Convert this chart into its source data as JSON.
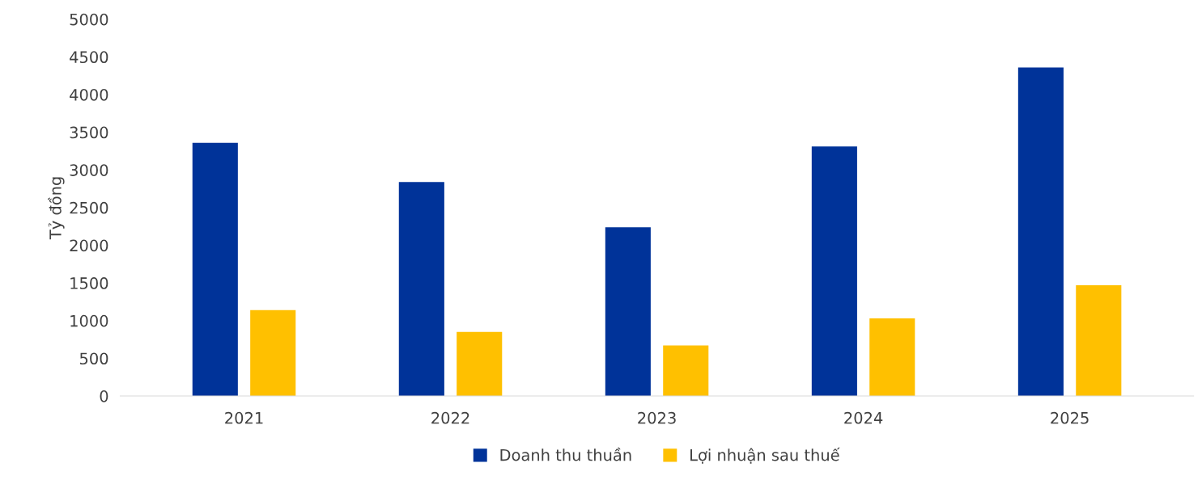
{
  "chart_data": {
    "type": "bar",
    "ylabel": "Tỷ đồng",
    "categories": [
      "2021",
      "2022",
      "2023",
      "2024",
      "2025"
    ],
    "series": [
      {
        "name": "Doanh thu thuần",
        "color": "#003399",
        "values": [
          3360,
          2840,
          2240,
          3310,
          4360
        ]
      },
      {
        "name": "Lợi nhuận sau thuế",
        "color": "#ffc000",
        "values": [
          1140,
          850,
          670,
          1030,
          1470
        ]
      }
    ],
    "ylim": [
      0,
      5000
    ],
    "yticks": [
      0,
      500,
      1000,
      1500,
      2000,
      2500,
      3000,
      3500,
      4000,
      4500,
      5000
    ],
    "grid": false,
    "legend": "bottom"
  }
}
